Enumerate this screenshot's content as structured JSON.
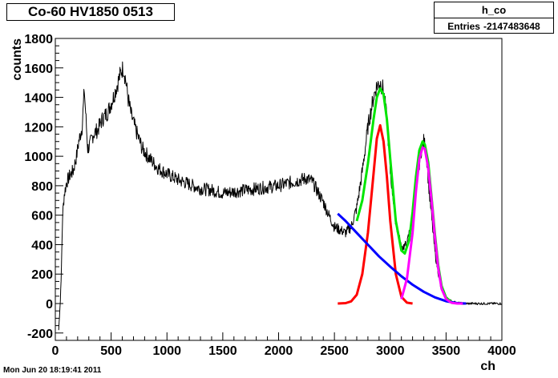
{
  "title": "Co-60 HV1850 0513",
  "stats": {
    "name": "h_co",
    "entries_label": "Entries",
    "entries_value": "-2147483648"
  },
  "timestamp": "Mon Jun 20 18:19:41 2011",
  "chart_data": {
    "type": "line",
    "xlabel": "ch",
    "ylabel": "counts",
    "xlim": [
      0,
      4000
    ],
    "ylim": [
      -250,
      1800
    ],
    "xticks": [
      0,
      500,
      1000,
      1500,
      2000,
      2500,
      3000,
      3500,
      4000
    ],
    "yticks": [
      -200,
      0,
      200,
      400,
      600,
      800,
      1000,
      1200,
      1400,
      1600,
      1800
    ],
    "grid": false,
    "series": [
      {
        "color": "#000000",
        "x": [
          30,
          45,
          55,
          65,
          80,
          100,
          130,
          160,
          190,
          210,
          240,
          260,
          275,
          290,
          310,
          340,
          380,
          420,
          470,
          520,
          560,
          590,
          610,
          630,
          650,
          680,
          720,
          780,
          850,
          920,
          1000,
          1100,
          1200,
          1300,
          1400,
          1500,
          1600,
          1700,
          1800,
          1900,
          2000,
          2100,
          2200,
          2250,
          2300,
          2350,
          2400,
          2450,
          2500,
          2550,
          2600,
          2650,
          2700,
          2750,
          2800,
          2850,
          2880,
          2910,
          2940,
          2970,
          3000,
          3050,
          3100,
          3150,
          3200,
          3250,
          3280,
          3300,
          3320,
          3350,
          3400,
          3450,
          3500,
          3550,
          3600,
          3650,
          3700,
          3800,
          3900,
          4000
        ],
        "y": [
          -180,
          20,
          250,
          600,
          740,
          820,
          870,
          900,
          1000,
          1100,
          1200,
          1450,
          1250,
          1050,
          1080,
          1150,
          1180,
          1250,
          1300,
          1400,
          1500,
          1580,
          1600,
          1520,
          1400,
          1280,
          1180,
          1050,
          980,
          920,
          880,
          840,
          810,
          780,
          770,
          750,
          760,
          770,
          780,
          790,
          800,
          820,
          840,
          850,
          830,
          760,
          690,
          600,
          520,
          500,
          480,
          520,
          650,
          900,
          1200,
          1400,
          1480,
          1500,
          1450,
          1250,
          900,
          550,
          380,
          400,
          600,
          900,
          1050,
          1100,
          1050,
          750,
          350,
          120,
          40,
          15,
          5,
          0,
          0,
          0,
          0,
          0
        ]
      },
      {
        "color": "#00e600",
        "x": [
          2700,
          2750,
          2800,
          2850,
          2880,
          2910,
          2940,
          2970,
          3000,
          3050,
          3100,
          3130,
          3170,
          3200,
          3230,
          3260,
          3290,
          3310,
          3340,
          3370,
          3400,
          3430,
          3460,
          3500,
          3550,
          3600
        ],
        "y": [
          560,
          700,
          950,
          1250,
          1400,
          1460,
          1420,
          1250,
          980,
          560,
          360,
          340,
          430,
          620,
          860,
          1040,
          1100,
          1080,
          960,
          720,
          470,
          260,
          120,
          40,
          10,
          2
        ]
      },
      {
        "color": "#ff0000",
        "x": [
          2530,
          2600,
          2650,
          2700,
          2750,
          2800,
          2850,
          2880,
          2910,
          2940,
          2970,
          3000,
          3050,
          3100,
          3150,
          3200
        ],
        "y": [
          0,
          3,
          15,
          60,
          200,
          480,
          880,
          1120,
          1210,
          1100,
          860,
          560,
          200,
          45,
          6,
          0
        ]
      },
      {
        "color": "#0000ff",
        "x": [
          2530,
          2600,
          2700,
          2800,
          2900,
          3000,
          3100,
          3200,
          3300,
          3400,
          3500,
          3600,
          3680
        ],
        "y": [
          610,
          560,
          480,
          400,
          320,
          250,
          185,
          128,
          80,
          42,
          16,
          3,
          0
        ]
      },
      {
        "color": "#ff00ff",
        "x": [
          3100,
          3150,
          3200,
          3230,
          3260,
          3290,
          3310,
          3340,
          3370,
          3400,
          3430,
          3460,
          3500,
          3550,
          3600,
          3650
        ],
        "y": [
          30,
          170,
          480,
          760,
          980,
          1060,
          1050,
          920,
          700,
          450,
          240,
          100,
          30,
          5,
          0,
          0
        ]
      }
    ]
  }
}
